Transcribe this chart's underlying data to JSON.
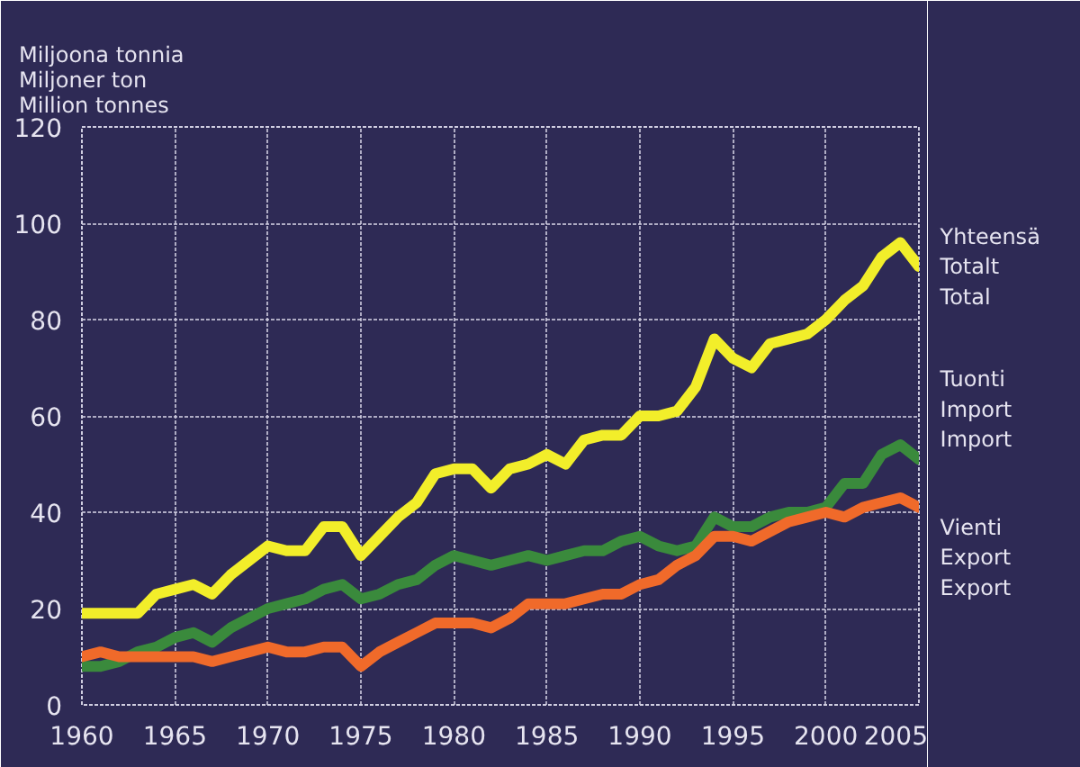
{
  "chart_data": {
    "type": "line",
    "ylabel": "Miljoona tonnia\nMiljoner ton\nMillion tonnes",
    "x": [
      1960,
      1961,
      1962,
      1963,
      1964,
      1965,
      1966,
      1967,
      1968,
      1969,
      1970,
      1971,
      1972,
      1973,
      1974,
      1975,
      1976,
      1977,
      1978,
      1979,
      1980,
      1981,
      1982,
      1983,
      1984,
      1985,
      1986,
      1987,
      1988,
      1989,
      1990,
      1991,
      1992,
      1993,
      1994,
      1995,
      1996,
      1997,
      1998,
      1999,
      2000,
      2001,
      2002,
      2003,
      2004,
      2005
    ],
    "series": [
      {
        "name": "Yhteensä\nTotalt\nTotal",
        "color": "#f2ee2a",
        "values": [
          19,
          19,
          19,
          19,
          23,
          24,
          25,
          23,
          27,
          30,
          33,
          32,
          32,
          37,
          37,
          31,
          35,
          39,
          42,
          48,
          49,
          49,
          45,
          49,
          50,
          52,
          50,
          55,
          56,
          56,
          60,
          60,
          61,
          66,
          76,
          72,
          70,
          75,
          76,
          77,
          80,
          84,
          87,
          93,
          96,
          91
        ]
      },
      {
        "name": "Tuonti\nImport\nImport",
        "color": "#3a8a3c",
        "values": [
          8,
          8,
          9,
          11,
          12,
          14,
          15,
          13,
          16,
          18,
          20,
          21,
          22,
          24,
          25,
          22,
          23,
          25,
          26,
          29,
          31,
          30,
          29,
          30,
          31,
          30,
          31,
          32,
          32,
          34,
          35,
          33,
          32,
          33,
          39,
          37,
          37,
          39,
          40,
          40,
          41,
          46,
          46,
          52,
          54,
          51
        ]
      },
      {
        "name": "Vienti\nExport\nExport",
        "color": "#f06a2a",
        "values": [
          10,
          11,
          10,
          10,
          10,
          10,
          10,
          9,
          10,
          11,
          12,
          11,
          11,
          12,
          12,
          8,
          11,
          13,
          15,
          17,
          17,
          17,
          16,
          18,
          21,
          21,
          21,
          22,
          23,
          23,
          25,
          26,
          29,
          31,
          35,
          35,
          34,
          36,
          38,
          39,
          40,
          39,
          41,
          42,
          43,
          41
        ]
      }
    ],
    "xlim": [
      1960,
      2005
    ],
    "ylim": [
      0,
      120
    ],
    "xticks": [
      1960,
      1965,
      1970,
      1975,
      1980,
      1985,
      1990,
      1995,
      2000,
      2005
    ],
    "yticks": [
      0,
      20,
      40,
      60,
      80,
      100,
      120
    ],
    "grid": true,
    "line_style": "solid",
    "marker": "none"
  }
}
